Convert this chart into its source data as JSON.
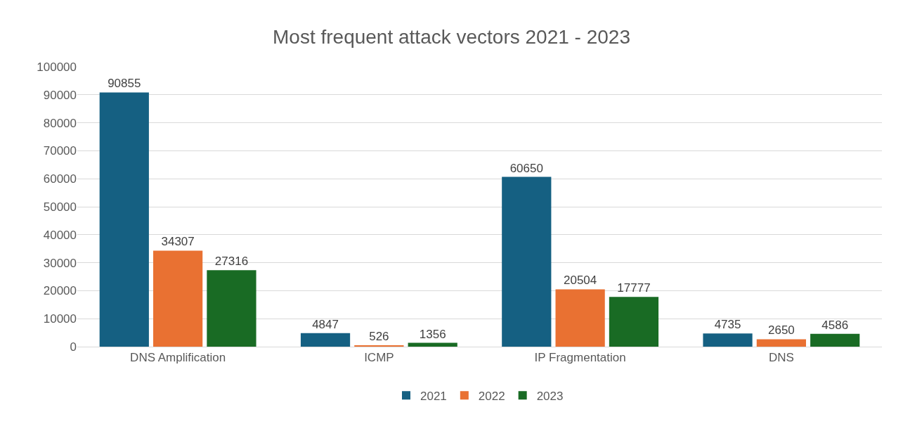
{
  "chart_data": {
    "type": "bar",
    "title": "Most frequent attack vectors 2021 - 2023",
    "categories": [
      "DNS Amplification",
      "ICMP",
      "IP Fragmentation",
      "DNS"
    ],
    "series": [
      {
        "name": "2021",
        "color": "#156082",
        "values": [
          90855,
          4847,
          60650,
          4735
        ]
      },
      {
        "name": "2022",
        "color": "#e97132",
        "values": [
          34307,
          526,
          20504,
          2650
        ]
      },
      {
        "name": "2023",
        "color": "#196b24",
        "values": [
          27316,
          1356,
          17777,
          4586
        ]
      }
    ],
    "ylim": [
      0,
      100000
    ],
    "yticks": [
      0,
      10000,
      20000,
      30000,
      40000,
      50000,
      60000,
      70000,
      80000,
      90000,
      100000
    ],
    "grid": "y",
    "legend": "bottom",
    "data_labels": true
  }
}
